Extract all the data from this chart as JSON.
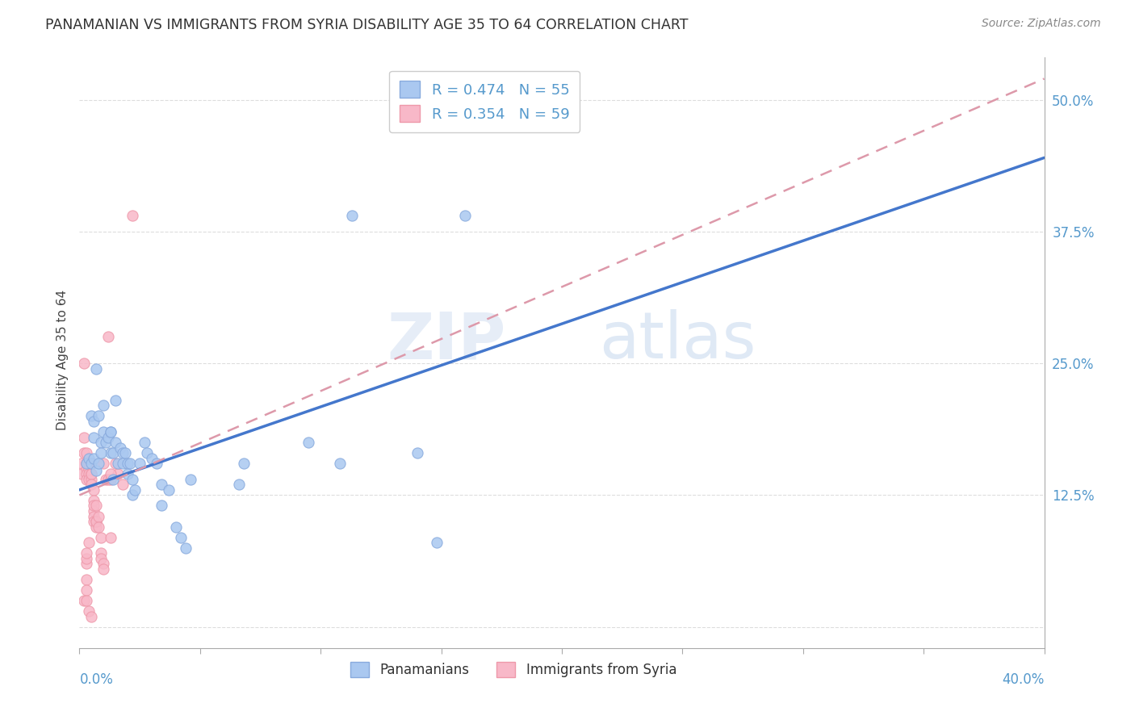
{
  "title": "PANAMANIAN VS IMMIGRANTS FROM SYRIA DISABILITY AGE 35 TO 64 CORRELATION CHART",
  "source": "Source: ZipAtlas.com",
  "ylabel": "Disability Age 35 to 64",
  "ytick_vals": [
    0.0,
    0.125,
    0.25,
    0.375,
    0.5
  ],
  "ytick_labels": [
    "",
    "12.5%",
    "25.0%",
    "37.5%",
    "50.0%"
  ],
  "xlim": [
    0.0,
    0.4
  ],
  "ylim": [
    -0.02,
    0.54
  ],
  "watermark": "ZIPatlas",
  "blue_scatter": [
    [
      0.003,
      0.155
    ],
    [
      0.004,
      0.16
    ],
    [
      0.005,
      0.2
    ],
    [
      0.006,
      0.195
    ],
    [
      0.006,
      0.18
    ],
    [
      0.007,
      0.245
    ],
    [
      0.008,
      0.2
    ],
    [
      0.009,
      0.175
    ],
    [
      0.01,
      0.21
    ],
    [
      0.01,
      0.185
    ],
    [
      0.011,
      0.175
    ],
    [
      0.012,
      0.18
    ],
    [
      0.013,
      0.185
    ],
    [
      0.013,
      0.185
    ],
    [
      0.013,
      0.165
    ],
    [
      0.014,
      0.165
    ],
    [
      0.015,
      0.215
    ],
    [
      0.015,
      0.175
    ],
    [
      0.016,
      0.155
    ],
    [
      0.017,
      0.17
    ],
    [
      0.018,
      0.165
    ],
    [
      0.018,
      0.155
    ],
    [
      0.019,
      0.165
    ],
    [
      0.02,
      0.155
    ],
    [
      0.02,
      0.145
    ],
    [
      0.021,
      0.155
    ],
    [
      0.022,
      0.14
    ],
    [
      0.022,
      0.125
    ],
    [
      0.023,
      0.13
    ],
    [
      0.025,
      0.155
    ],
    [
      0.027,
      0.175
    ],
    [
      0.028,
      0.165
    ],
    [
      0.03,
      0.16
    ],
    [
      0.032,
      0.155
    ],
    [
      0.034,
      0.135
    ],
    [
      0.034,
      0.115
    ],
    [
      0.037,
      0.13
    ],
    [
      0.04,
      0.095
    ],
    [
      0.042,
      0.085
    ],
    [
      0.044,
      0.075
    ],
    [
      0.046,
      0.14
    ],
    [
      0.066,
      0.135
    ],
    [
      0.068,
      0.155
    ],
    [
      0.095,
      0.175
    ],
    [
      0.108,
      0.155
    ],
    [
      0.113,
      0.39
    ],
    [
      0.14,
      0.165
    ],
    [
      0.148,
      0.08
    ],
    [
      0.16,
      0.39
    ],
    [
      0.005,
      0.155
    ],
    [
      0.006,
      0.16
    ],
    [
      0.007,
      0.148
    ],
    [
      0.008,
      0.155
    ],
    [
      0.009,
      0.165
    ],
    [
      0.014,
      0.14
    ]
  ],
  "pink_scatter": [
    [
      0.001,
      0.155
    ],
    [
      0.001,
      0.145
    ],
    [
      0.002,
      0.25
    ],
    [
      0.002,
      0.18
    ],
    [
      0.002,
      0.165
    ],
    [
      0.003,
      0.165
    ],
    [
      0.003,
      0.155
    ],
    [
      0.003,
      0.15
    ],
    [
      0.003,
      0.155
    ],
    [
      0.003,
      0.145
    ],
    [
      0.003,
      0.14
    ],
    [
      0.004,
      0.155
    ],
    [
      0.004,
      0.15
    ],
    [
      0.004,
      0.155
    ],
    [
      0.004,
      0.145
    ],
    [
      0.004,
      0.14
    ],
    [
      0.005,
      0.155
    ],
    [
      0.005,
      0.145
    ],
    [
      0.005,
      0.14
    ],
    [
      0.005,
      0.145
    ],
    [
      0.005,
      0.135
    ],
    [
      0.006,
      0.13
    ],
    [
      0.006,
      0.12
    ],
    [
      0.006,
      0.11
    ],
    [
      0.006,
      0.115
    ],
    [
      0.006,
      0.105
    ],
    [
      0.006,
      0.1
    ],
    [
      0.007,
      0.1
    ],
    [
      0.007,
      0.095
    ],
    [
      0.007,
      0.115
    ],
    [
      0.007,
      0.1
    ],
    [
      0.008,
      0.105
    ],
    [
      0.008,
      0.095
    ],
    [
      0.009,
      0.085
    ],
    [
      0.009,
      0.07
    ],
    [
      0.009,
      0.065
    ],
    [
      0.01,
      0.155
    ],
    [
      0.01,
      0.06
    ],
    [
      0.01,
      0.055
    ],
    [
      0.011,
      0.14
    ],
    [
      0.012,
      0.275
    ],
    [
      0.012,
      0.14
    ],
    [
      0.013,
      0.085
    ],
    [
      0.013,
      0.14
    ],
    [
      0.015,
      0.155
    ],
    [
      0.016,
      0.145
    ],
    [
      0.018,
      0.135
    ],
    [
      0.002,
      0.025
    ],
    [
      0.004,
      0.08
    ],
    [
      0.022,
      0.39
    ],
    [
      0.003,
      0.06
    ],
    [
      0.003,
      0.065
    ],
    [
      0.003,
      0.07
    ],
    [
      0.003,
      0.045
    ],
    [
      0.003,
      0.035
    ],
    [
      0.003,
      0.025
    ],
    [
      0.004,
      0.015
    ],
    [
      0.005,
      0.01
    ],
    [
      0.013,
      0.145
    ]
  ],
  "blue_line": {
    "x0": 0.0,
    "y0": 0.13,
    "x1": 0.4,
    "y1": 0.445
  },
  "pink_line": {
    "x0": 0.0,
    "y0": 0.125,
    "x1": 0.4,
    "y1": 0.52
  },
  "blue_line_color": "#4477cc",
  "pink_line_color": "#dd99aa",
  "axis_color": "#5599cc",
  "grid_color": "#dddddd",
  "background_color": "#ffffff"
}
